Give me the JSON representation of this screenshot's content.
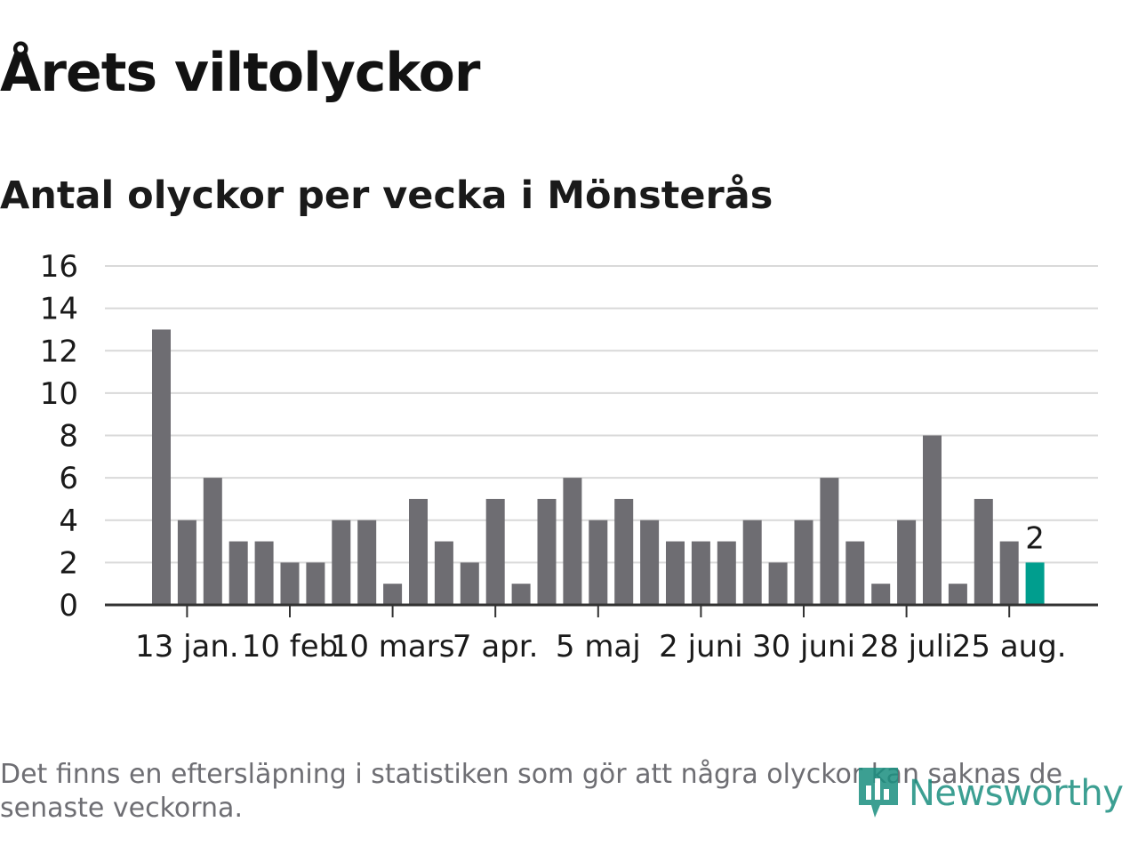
{
  "header": {
    "title": "Årets viltolyckor",
    "subtitle": "Antal olyckor per vecka i Mönsterås"
  },
  "footer": {
    "note": "Det finns en eftersläpning i statistiken som gör att några olyckor kan saknas de senaste veckorna.",
    "logo_text": "Newsworthy"
  },
  "colors": {
    "bar": "#6e6d72",
    "highlight": "#009e8e",
    "grid": "#d9d9d9",
    "axis": "#333333",
    "text": "#1a1a1a",
    "logo": "#1b8f80"
  },
  "chart_data": {
    "type": "bar",
    "title": "Antal olyckor per vecka i Mönsterås",
    "ylim": [
      0,
      16
    ],
    "y_ticks": [
      0,
      2,
      4,
      6,
      8,
      10,
      12,
      14,
      16
    ],
    "grid": true,
    "values": [
      13,
      4,
      6,
      3,
      3,
      2,
      2,
      4,
      4,
      1,
      5,
      3,
      2,
      5,
      1,
      5,
      6,
      4,
      5,
      4,
      3,
      3,
      3,
      4,
      2,
      4,
      6,
      3,
      1,
      4,
      8,
      1,
      5,
      3,
      2
    ],
    "x_tick_labels": [
      {
        "label": "13 jan.",
        "index": 1
      },
      {
        "label": "10 feb",
        "index": 5
      },
      {
        "label": "10 mars",
        "index": 9
      },
      {
        "label": "7 apr.",
        "index": 13
      },
      {
        "label": "5 maj",
        "index": 17
      },
      {
        "label": "2 juni",
        "index": 21
      },
      {
        "label": "30 juni",
        "index": 25
      },
      {
        "label": "28 juli",
        "index": 29
      },
      {
        "label": "25 aug.",
        "index": 33
      }
    ],
    "highlight_index": 34,
    "annotation": {
      "index": 34,
      "text": "2"
    }
  }
}
